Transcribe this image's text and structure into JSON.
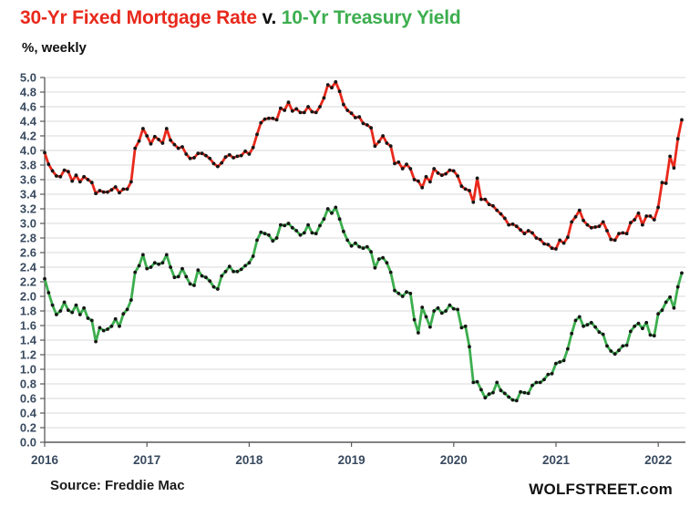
{
  "header": {
    "title_red": "30-Yr Fixed Mortgage Rate",
    "title_sep": " v. ",
    "title_green": "10-Yr Treasury Yield",
    "subtitle": "%, weekly"
  },
  "footer": {
    "source": "Source: Freddie Mac",
    "brand": "WOLFSTREET.com"
  },
  "colors": {
    "mortgage_line": "#e8291c",
    "treasury_line": "#3cae4e",
    "marker": "#161616",
    "grid": "#d9d9d9",
    "axis_line": "#595959",
    "axis_text": "#394a5f"
  },
  "chart_data": {
    "type": "line",
    "title": "30-Yr Fixed Mortgage Rate v. 10-Yr Treasury Yield",
    "subtitle": "%, weekly",
    "grid": true,
    "legend_position": "none (series identified by title colors)",
    "x_start": 2016.0,
    "x_end": 2022.23,
    "x_tick_values": [
      2016,
      2017,
      2018,
      2019,
      2020,
      2021,
      2022
    ],
    "x_tick_labels": [
      "2016",
      "2017",
      "2018",
      "2019",
      "2020",
      "2021",
      "2022"
    ],
    "ylim": [
      0.0,
      5.0
    ],
    "y_tick_step": 0.2,
    "y_tick_labels": [
      "5.0",
      "4.8",
      "4.6",
      "4.4",
      "4.2",
      "4.0",
      "3.8",
      "3.6",
      "3.4",
      "3.2",
      "3.0",
      "2.8",
      "2.6",
      "2.4",
      "2.2",
      "2.0",
      "1.8",
      "1.6",
      "1.4",
      "1.2",
      "1.0",
      "0.8",
      "0.6",
      "0.4",
      "0.2",
      "0.0"
    ],
    "cadence": "biweekly samples of weekly data, Jan 2016 - late Mar 2022",
    "series": [
      {
        "name": "30-Yr Fixed Mortgage Rate",
        "color": "#e8291c",
        "values": [
          3.97,
          3.81,
          3.72,
          3.65,
          3.64,
          3.73,
          3.71,
          3.58,
          3.66,
          3.57,
          3.64,
          3.6,
          3.56,
          3.41,
          3.45,
          3.43,
          3.43,
          3.46,
          3.5,
          3.42,
          3.47,
          3.47,
          3.57,
          4.03,
          4.13,
          4.3,
          4.2,
          4.09,
          4.19,
          4.15,
          4.1,
          4.3,
          4.14,
          4.08,
          4.03,
          4.05,
          3.95,
          3.89,
          3.9,
          3.96,
          3.96,
          3.93,
          3.89,
          3.82,
          3.78,
          3.83,
          3.91,
          3.94,
          3.9,
          3.92,
          3.93,
          3.99,
          3.95,
          4.04,
          4.22,
          4.38,
          4.43,
          4.44,
          4.44,
          4.42,
          4.58,
          4.55,
          4.66,
          4.54,
          4.57,
          4.52,
          4.52,
          4.6,
          4.53,
          4.52,
          4.6,
          4.72,
          4.9,
          4.86,
          4.94,
          4.81,
          4.63,
          4.55,
          4.51,
          4.45,
          4.46,
          4.37,
          4.35,
          4.31,
          4.06,
          4.12,
          4.2,
          4.1,
          4.06,
          3.82,
          3.84,
          3.75,
          3.81,
          3.75,
          3.6,
          3.58,
          3.49,
          3.64,
          3.57,
          3.75,
          3.69,
          3.66,
          3.68,
          3.73,
          3.72,
          3.65,
          3.51,
          3.47,
          3.45,
          3.29,
          3.62,
          3.33,
          3.33,
          3.26,
          3.24,
          3.18,
          3.13,
          3.07,
          2.98,
          2.99,
          2.96,
          2.91,
          2.86,
          2.9,
          2.87,
          2.8,
          2.78,
          2.72,
          2.71,
          2.66,
          2.65,
          2.77,
          2.73,
          2.81,
          3.02,
          3.09,
          3.18,
          3.04,
          2.98,
          2.94,
          2.95,
          2.96,
          3.02,
          2.9,
          2.78,
          2.77,
          2.86,
          2.87,
          2.86,
          3.01,
          3.05,
          3.14,
          2.98,
          3.1,
          3.1,
          3.05,
          3.22,
          3.56,
          3.55,
          3.92,
          3.76,
          4.16,
          4.42
        ]
      },
      {
        "name": "10-Yr Treasury Yield",
        "color": "#3cae4e",
        "values": [
          2.24,
          2.05,
          1.88,
          1.75,
          1.8,
          1.92,
          1.81,
          1.78,
          1.88,
          1.75,
          1.84,
          1.7,
          1.67,
          1.38,
          1.57,
          1.53,
          1.55,
          1.59,
          1.69,
          1.59,
          1.76,
          1.82,
          1.95,
          2.33,
          2.42,
          2.57,
          2.38,
          2.4,
          2.46,
          2.44,
          2.46,
          2.57,
          2.4,
          2.26,
          2.27,
          2.38,
          2.27,
          2.17,
          2.15,
          2.36,
          2.28,
          2.26,
          2.21,
          2.13,
          2.1,
          2.28,
          2.34,
          2.41,
          2.34,
          2.34,
          2.37,
          2.42,
          2.46,
          2.55,
          2.77,
          2.88,
          2.86,
          2.84,
          2.76,
          2.8,
          2.98,
          2.97,
          3.0,
          2.94,
          2.9,
          2.84,
          2.87,
          2.98,
          2.87,
          2.86,
          2.97,
          3.06,
          3.2,
          3.14,
          3.22,
          3.06,
          2.89,
          2.77,
          2.69,
          2.73,
          2.68,
          2.66,
          2.68,
          2.61,
          2.39,
          2.51,
          2.53,
          2.46,
          2.33,
          2.08,
          2.04,
          2.0,
          2.06,
          2.04,
          1.68,
          1.5,
          1.85,
          1.72,
          1.58,
          1.8,
          1.84,
          1.77,
          1.8,
          1.88,
          1.83,
          1.82,
          1.57,
          1.59,
          1.31,
          0.82,
          0.83,
          0.72,
          0.61,
          0.66,
          0.68,
          0.82,
          0.71,
          0.67,
          0.62,
          0.58,
          0.57,
          0.69,
          0.68,
          0.67,
          0.78,
          0.82,
          0.82,
          0.86,
          0.93,
          0.94,
          1.08,
          1.1,
          1.12,
          1.28,
          1.49,
          1.67,
          1.72,
          1.59,
          1.61,
          1.64,
          1.58,
          1.51,
          1.48,
          1.32,
          1.25,
          1.21,
          1.26,
          1.32,
          1.33,
          1.52,
          1.59,
          1.63,
          1.56,
          1.64,
          1.47,
          1.46,
          1.76,
          1.81,
          1.92,
          1.99,
          1.84,
          2.13,
          2.32
        ]
      }
    ]
  }
}
